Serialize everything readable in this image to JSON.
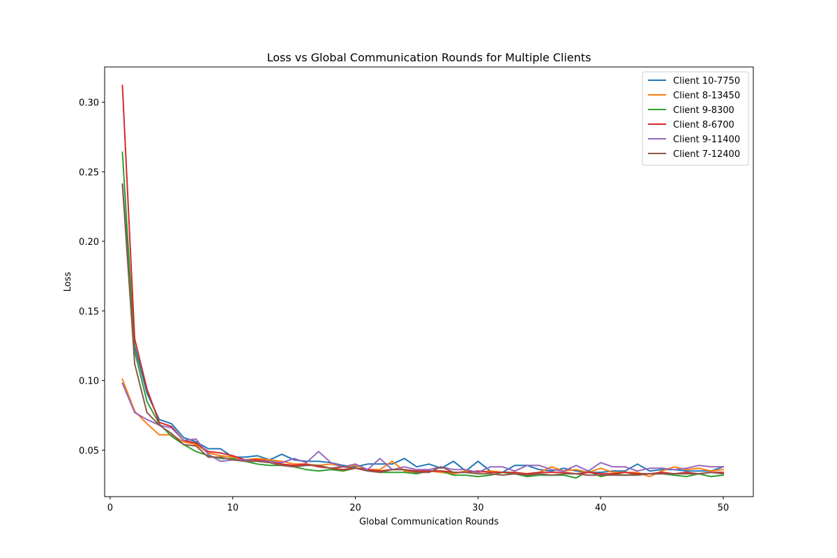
{
  "chart_data": {
    "type": "line",
    "title": "Loss vs Global Communication Rounds for Multiple Clients",
    "xlabel": "Global Communication Rounds",
    "ylabel": "Loss",
    "xlim": [
      -0.45,
      52.45
    ],
    "ylim": [
      0.0166,
      0.3253
    ],
    "xticks": [
      0,
      10,
      20,
      30,
      40,
      50
    ],
    "yticks": [
      0.05,
      0.1,
      0.15,
      0.2,
      0.25,
      0.3
    ],
    "xtick_labels": [
      "0",
      "10",
      "20",
      "30",
      "40",
      "50"
    ],
    "ytick_labels": [
      "0.05",
      "0.10",
      "0.15",
      "0.20",
      "0.25",
      "0.30"
    ],
    "grid": false,
    "legend_position": "top-right",
    "x": [
      1,
      2,
      3,
      4,
      5,
      6,
      7,
      8,
      9,
      10,
      11,
      12,
      13,
      14,
      15,
      16,
      17,
      18,
      19,
      20,
      21,
      22,
      23,
      24,
      25,
      26,
      27,
      28,
      29,
      30,
      31,
      32,
      33,
      34,
      35,
      36,
      37,
      38,
      39,
      40,
      41,
      42,
      43,
      44,
      45,
      46,
      47,
      48,
      49,
      50
    ],
    "series": [
      {
        "name": "Client 10-7750",
        "color": "#1f77b4",
        "values": [
          0.241,
          0.125,
          0.091,
          0.072,
          0.069,
          0.059,
          0.056,
          0.051,
          0.051,
          0.045,
          0.045,
          0.046,
          0.043,
          0.047,
          0.043,
          0.042,
          0.042,
          0.041,
          0.039,
          0.038,
          0.04,
          0.04,
          0.04,
          0.044,
          0.038,
          0.04,
          0.037,
          0.042,
          0.035,
          0.042,
          0.035,
          0.034,
          0.039,
          0.039,
          0.036,
          0.035,
          0.037,
          0.035,
          0.034,
          0.034,
          0.035,
          0.035,
          0.04,
          0.035,
          0.036,
          0.036,
          0.035,
          0.035,
          0.035,
          0.038
        ]
      },
      {
        "name": "Client 8-13450",
        "color": "#ff7f0e",
        "values": [
          0.101,
          0.078,
          0.069,
          0.061,
          0.061,
          0.056,
          0.054,
          0.048,
          0.046,
          0.045,
          0.043,
          0.044,
          0.043,
          0.042,
          0.04,
          0.04,
          0.039,
          0.04,
          0.038,
          0.039,
          0.036,
          0.036,
          0.042,
          0.035,
          0.034,
          0.035,
          0.034,
          0.033,
          0.035,
          0.034,
          0.035,
          0.034,
          0.033,
          0.033,
          0.034,
          0.038,
          0.035,
          0.036,
          0.034,
          0.037,
          0.034,
          0.034,
          0.034,
          0.031,
          0.035,
          0.038,
          0.036,
          0.037,
          0.035,
          0.036
        ]
      },
      {
        "name": "Client 9-8300",
        "color": "#2ca02c",
        "values": [
          0.264,
          0.121,
          0.085,
          0.069,
          0.06,
          0.054,
          0.049,
          0.046,
          0.044,
          0.044,
          0.042,
          0.04,
          0.039,
          0.039,
          0.038,
          0.036,
          0.035,
          0.036,
          0.035,
          0.037,
          0.036,
          0.034,
          0.034,
          0.034,
          0.033,
          0.035,
          0.035,
          0.032,
          0.032,
          0.031,
          0.032,
          0.034,
          0.033,
          0.031,
          0.032,
          0.032,
          0.032,
          0.03,
          0.035,
          0.031,
          0.033,
          0.032,
          0.033,
          0.033,
          0.033,
          0.032,
          0.031,
          0.033,
          0.031,
          0.032
        ]
      },
      {
        "name": "Client 8-6700",
        "color": "#d62728",
        "values": [
          0.312,
          0.13,
          0.094,
          0.07,
          0.067,
          0.057,
          0.055,
          0.049,
          0.048,
          0.046,
          0.043,
          0.043,
          0.042,
          0.04,
          0.039,
          0.04,
          0.038,
          0.037,
          0.036,
          0.037,
          0.036,
          0.035,
          0.036,
          0.036,
          0.035,
          0.035,
          0.035,
          0.034,
          0.034,
          0.035,
          0.034,
          0.034,
          0.034,
          0.033,
          0.034,
          0.034,
          0.034,
          0.033,
          0.034,
          0.033,
          0.033,
          0.034,
          0.033,
          0.033,
          0.034,
          0.033,
          0.034,
          0.033,
          0.034,
          0.034
        ]
      },
      {
        "name": "Client 9-11400",
        "color": "#9467bd",
        "values": [
          0.098,
          0.077,
          0.072,
          0.068,
          0.066,
          0.057,
          0.058,
          0.047,
          0.042,
          0.043,
          0.043,
          0.042,
          0.042,
          0.041,
          0.044,
          0.041,
          0.049,
          0.041,
          0.038,
          0.04,
          0.036,
          0.044,
          0.036,
          0.038,
          0.036,
          0.036,
          0.038,
          0.036,
          0.036,
          0.034,
          0.038,
          0.038,
          0.035,
          0.039,
          0.039,
          0.036,
          0.035,
          0.039,
          0.035,
          0.041,
          0.038,
          0.038,
          0.035,
          0.037,
          0.037,
          0.036,
          0.037,
          0.039,
          0.038,
          0.038
        ]
      },
      {
        "name": "Client 7-12400",
        "color": "#8c564b",
        "values": [
          0.241,
          0.112,
          0.077,
          0.068,
          0.062,
          0.054,
          0.053,
          0.045,
          0.045,
          0.043,
          0.042,
          0.042,
          0.041,
          0.039,
          0.038,
          0.039,
          0.039,
          0.037,
          0.038,
          0.037,
          0.035,
          0.034,
          0.036,
          0.036,
          0.034,
          0.034,
          0.038,
          0.034,
          0.034,
          0.033,
          0.033,
          0.032,
          0.033,
          0.032,
          0.033,
          0.032,
          0.033,
          0.033,
          0.032,
          0.032,
          0.032,
          0.032,
          0.032,
          0.033,
          0.033,
          0.033,
          0.033,
          0.033,
          0.034,
          0.033
        ]
      }
    ]
  }
}
